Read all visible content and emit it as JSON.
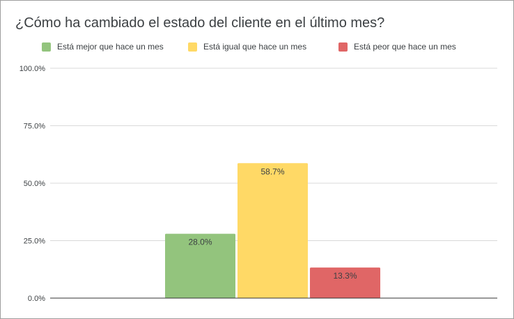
{
  "chart_data": {
    "type": "bar",
    "title": "¿Cómo ha cambiado el estado del cliente en el último mes?",
    "xlabel": "",
    "ylabel": "",
    "ylim": [
      0,
      100
    ],
    "yticks": [
      "0.0%",
      "25.0%",
      "50.0%",
      "75.0%",
      "100.0%"
    ],
    "ytick_values": [
      0,
      25,
      50,
      75,
      100
    ],
    "grid": true,
    "legend_position": "top",
    "series": [
      {
        "name": "Está mejor que hace un mes",
        "value": 28.0,
        "label": "28.0%",
        "color": "#93c47d"
      },
      {
        "name": "Está igual que hace un mes",
        "value": 58.7,
        "label": "58.7%",
        "color": "#ffd966"
      },
      {
        "name": "Está peor que hace un mes",
        "value": 13.3,
        "label": "13.3%",
        "color": "#e06666"
      }
    ]
  }
}
